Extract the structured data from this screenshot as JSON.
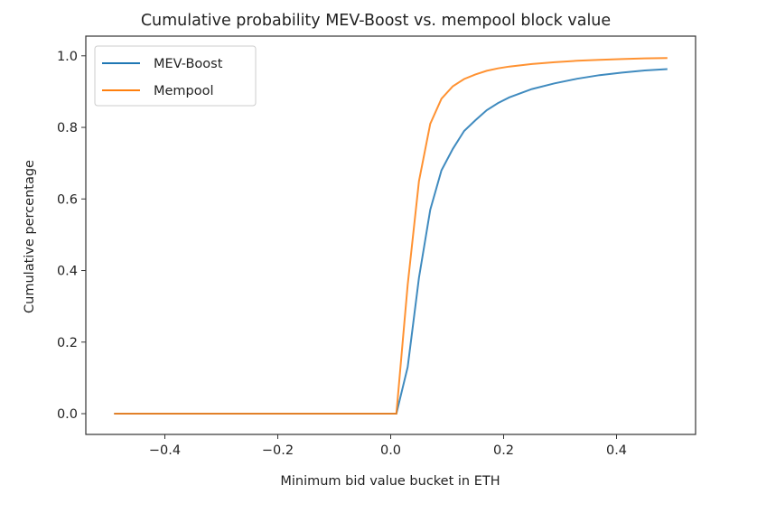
{
  "chart_data": {
    "type": "line",
    "title": "Cumulative probability MEV-Boost vs. mempool block value",
    "xlabel": "Minimum bid value bucket in ETH",
    "ylabel": "Cumulative percentage",
    "xlim": [
      -0.54,
      0.54
    ],
    "ylim": [
      -0.058,
      1.055
    ],
    "xticks": [
      -0.4,
      -0.2,
      0.0,
      0.2,
      0.4
    ],
    "xtick_labels": [
      "−0.4",
      "−0.2",
      "0.0",
      "0.2",
      "0.4"
    ],
    "yticks": [
      0.0,
      0.2,
      0.4,
      0.6,
      0.8,
      1.0
    ],
    "ytick_labels": [
      "0.0",
      "0.2",
      "0.4",
      "0.6",
      "0.8",
      "1.0"
    ],
    "grid": false,
    "legend_position": "top-left",
    "x": [
      -0.49,
      0.01,
      0.03,
      0.05,
      0.07,
      0.09,
      0.11,
      0.13,
      0.15,
      0.17,
      0.19,
      0.21,
      0.25,
      0.29,
      0.33,
      0.37,
      0.41,
      0.45,
      0.49
    ],
    "series": [
      {
        "name": "MEV-Boost",
        "color": "#1f77b4",
        "values": [
          0,
          0,
          0.13,
          0.38,
          0.57,
          0.68,
          0.74,
          0.79,
          0.82,
          0.848,
          0.868,
          0.884,
          0.907,
          0.923,
          0.936,
          0.946,
          0.953,
          0.959,
          0.963
        ]
      },
      {
        "name": "Mempool",
        "color": "#ff7f0e",
        "values": [
          0,
          0,
          0.36,
          0.65,
          0.81,
          0.88,
          0.915,
          0.935,
          0.948,
          0.958,
          0.965,
          0.97,
          0.977,
          0.982,
          0.986,
          0.989,
          0.991,
          0.993,
          0.994
        ]
      }
    ]
  }
}
